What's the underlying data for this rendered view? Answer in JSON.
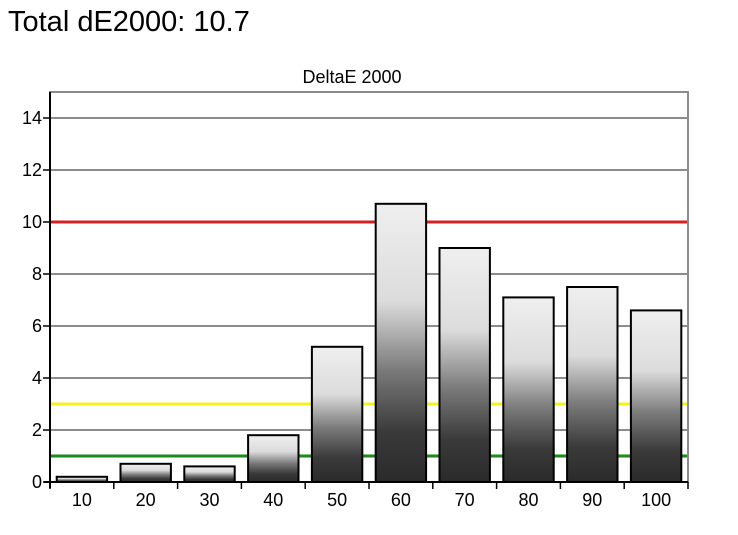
{
  "header": {
    "total_label": "Total dE2000: 10.7"
  },
  "chart_data": {
    "type": "bar",
    "title": "DeltaE 2000",
    "xlabel": "",
    "ylabel": "",
    "categories": [
      "10",
      "20",
      "30",
      "40",
      "50",
      "60",
      "70",
      "80",
      "90",
      "100"
    ],
    "values": [
      0.2,
      0.7,
      0.6,
      1.8,
      5.2,
      10.7,
      9.0,
      7.1,
      7.5,
      6.6
    ],
    "ylim": [
      0,
      15
    ],
    "yticks": [
      0,
      2,
      4,
      6,
      8,
      10,
      12,
      14
    ],
    "grid": true,
    "legend": "none",
    "reference_lines": [
      {
        "value": 10,
        "color": "#d42020"
      },
      {
        "value": 3,
        "color": "#f5f020"
      },
      {
        "value": 1,
        "color": "#1a8a1a"
      }
    ],
    "colors": {
      "grid": "#8c8c8c",
      "frame": "#8c8c8c",
      "bar_outline": "#000000",
      "bar_top": "#f2f2f2",
      "bar_bottom": "#222222"
    }
  }
}
